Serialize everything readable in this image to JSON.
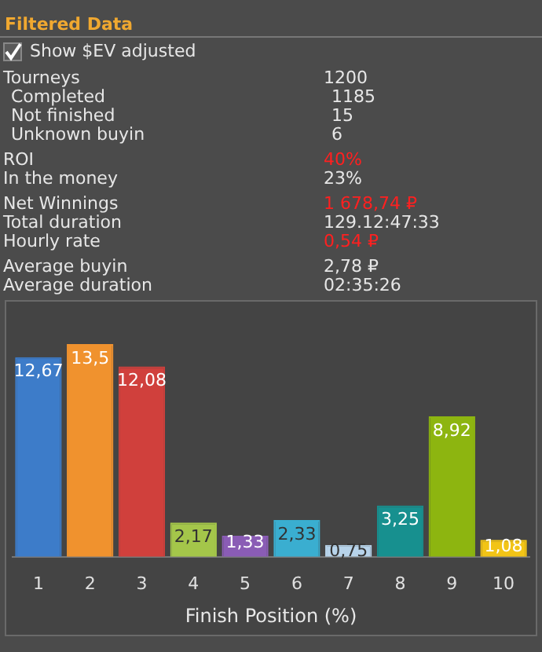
{
  "chart_data": {
    "type": "bar",
    "xlabel": "Finish Position (%)",
    "annotations": [
      "Filtered Data",
      "Show $EV adjusted",
      "Tourneys",
      "1200",
      "Completed",
      "1185",
      "Not finished",
      "15",
      "Unknown buyin",
      "6",
      "ROI",
      "40%",
      "In the money",
      "23%",
      "Net Winnings",
      "1 678,74 ₽",
      "Total duration",
      "129.12:47:33",
      "Hourly rate",
      "0,54 ₽",
      "Average buyin",
      "2,78 ₽",
      "Average duration",
      "02:35:26"
    ],
    "categories": [
      "1",
      "2",
      "3",
      "4",
      "5",
      "6",
      "7",
      "8",
      "9",
      "10"
    ],
    "values": [
      12.67,
      13.5,
      12.08,
      2.17,
      1.33,
      2.33,
      0.75,
      3.25,
      8.92,
      1.08
    ],
    "value_labels": [
      "12,67",
      "13,5",
      "12,08",
      "2,17",
      "1,33",
      "2,33",
      "0,75",
      "3,25",
      "8,92",
      "1,08"
    ],
    "colors": [
      "#3d7cc9",
      "#f0922e",
      "#d0403c",
      "#a4c64a",
      "#8a5cb5",
      "#3aaed0",
      "#b7d3ea",
      "#17908f",
      "#8db510",
      "#f2c416"
    ]
  }
}
